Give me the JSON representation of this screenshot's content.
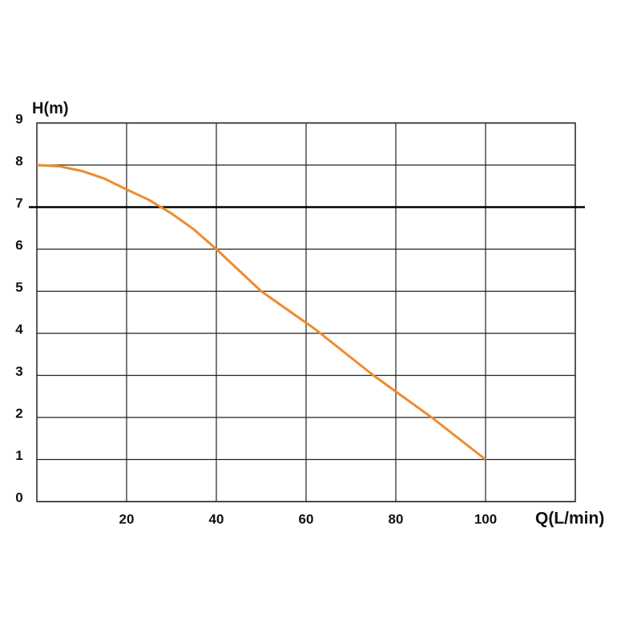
{
  "chart_data": {
    "type": "line",
    "x_label": "Q(L/min)",
    "y_label": "H(m)",
    "x": [
      0,
      5,
      10,
      15,
      20,
      25,
      30,
      35,
      40,
      50,
      62,
      75,
      88,
      100
    ],
    "series": [
      {
        "name": "H",
        "color": "#f08a2c",
        "values": [
          8,
          7.97,
          7.86,
          7.68,
          7.42,
          7.17,
          6.85,
          6.47,
          6.0,
          5.0,
          4.1,
          3.0,
          2.0,
          1.0
        ]
      }
    ],
    "xlim": [
      0,
      120
    ],
    "ylim": [
      0,
      9
    ],
    "xticks": [
      20,
      40,
      60,
      80,
      100
    ],
    "yticks": [
      0,
      1,
      2,
      3,
      4,
      5,
      6,
      7,
      8,
      9
    ],
    "grid": true,
    "reference_line": {
      "value": 7,
      "color": "#000000"
    }
  }
}
